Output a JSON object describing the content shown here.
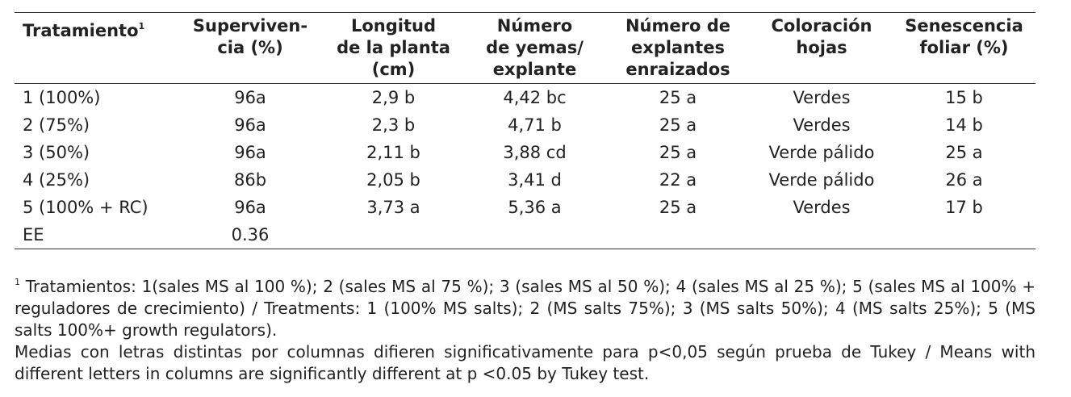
{
  "table": {
    "headers": [
      [
        "Tratamiento"
      ],
      [
        "Superviven-",
        "cia (%)"
      ],
      [
        "Longitud",
        "de la planta",
        "(cm)"
      ],
      [
        "Número",
        "de yemas/",
        "explante"
      ],
      [
        "Número de",
        "explantes",
        "enraizados"
      ],
      [
        "Coloración",
        "hojas"
      ],
      [
        "Senescencia",
        "foliar (%)"
      ]
    ],
    "header_note": "1",
    "rows": [
      [
        "1 (100%)",
        "96a",
        "2,9 b",
        "4,42 bc",
        "25 a",
        "Verdes",
        "15 b"
      ],
      [
        "2 (75%)",
        "96a",
        "2,3 b",
        "4,71 b",
        "25 a",
        "Verdes",
        "14 b"
      ],
      [
        "3 (50%)",
        "96a",
        "2,11 b",
        "3,88 cd",
        "25 a",
        "Verde pálido",
        "25 a"
      ],
      [
        "4 (25%)",
        "86b",
        "2,05 b",
        "3,41 d",
        "22 a",
        "Verde pálido",
        "26 a"
      ],
      [
        "5 (100% + RC)",
        "96a",
        "3,73 a",
        "5,36 a",
        "25 a",
        "Verdes",
        "17 b"
      ],
      [
        "EE",
        "0.36"
      ]
    ]
  },
  "notes": {
    "marker": "1",
    "treatments": "Tratamientos: 1(sales MS al 100 %); 2 (sales MS al 75 %); 3 (sales MS al 50 %); 4 (sales MS al 25 %); 5 (sales MS al 100% + reguladores de crecimiento) / Treatments: 1 (100% MS salts); 2 (MS salts 75%); 3 (MS salts 50%); 4 (MS salts 25%); 5 (MS salts 100%+ growth regulators).",
    "tukey": "Medias con letras distintas por columnas difieren significativamente para p<0,05 según prueba de Tukey / Means with different letters in columns are significantly different at p <0.05 by Tukey test."
  }
}
